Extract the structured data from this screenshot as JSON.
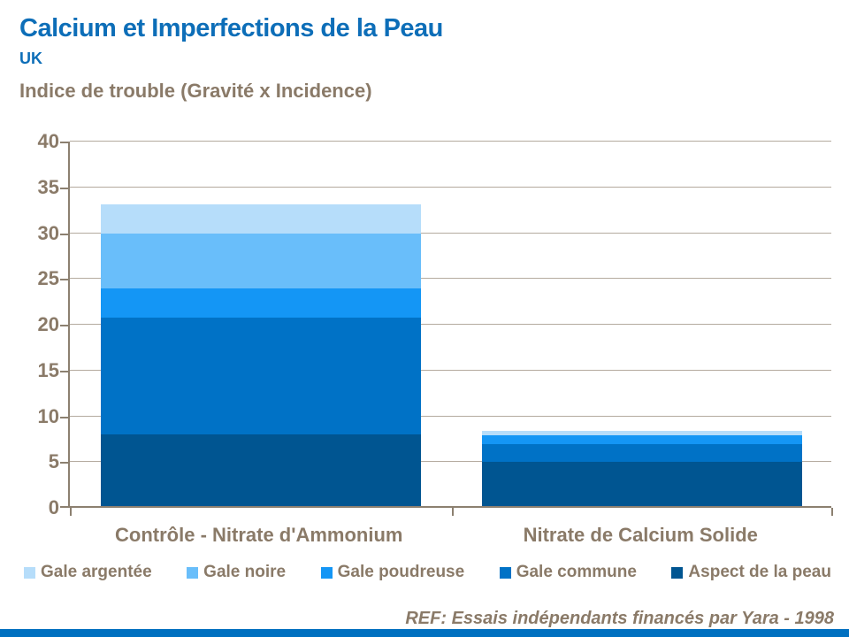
{
  "header": {
    "title": "Calcium et Imperfections de la Peau",
    "region": "UK"
  },
  "chart": {
    "title_label": "Indice de trouble (Gravité x Incidence)"
  },
  "chart_data": {
    "type": "bar",
    "stacked": true,
    "title": "Indice de trouble (Gravité x Incidence)",
    "categories": [
      "Contrôle - Nitrate d'Ammonium",
      "Nitrate de Calcium Solide"
    ],
    "series": [
      {
        "name": "Aspect de la peau",
        "color": "#005591",
        "values": [
          7.8,
          4.8
        ]
      },
      {
        "name": "Gale commune",
        "color": "#0072C6",
        "values": [
          12.8,
          2.0
        ]
      },
      {
        "name": "Gale poudreuse",
        "color": "#1496F5",
        "values": [
          3.2,
          0.9
        ]
      },
      {
        "name": "Gale noire",
        "color": "#69BEFA",
        "values": [
          6.0,
          0.0
        ]
      },
      {
        "name": "Gale argentée",
        "color": "#B6DDFA",
        "values": [
          3.2,
          0.5
        ]
      }
    ],
    "stack_order": "bottom-to-top",
    "ylim": [
      0,
      40
    ],
    "ytick_step": 5,
    "grid": true,
    "legend": [
      "Gale argentée",
      "Gale noire",
      "Gale poudreuse",
      "Gale commune",
      "Aspect de la peau"
    ],
    "legend_position": "bottom"
  },
  "footer": {
    "ref": "REF: Essais indépendants financés par Yara - 1998"
  },
  "colors": {
    "title_blue": "#0D6EB8",
    "text_brown": "#8A7A68",
    "grid": "#B4AA9E",
    "axis": "#8C8070",
    "bottom_bar": "#0070C0"
  }
}
